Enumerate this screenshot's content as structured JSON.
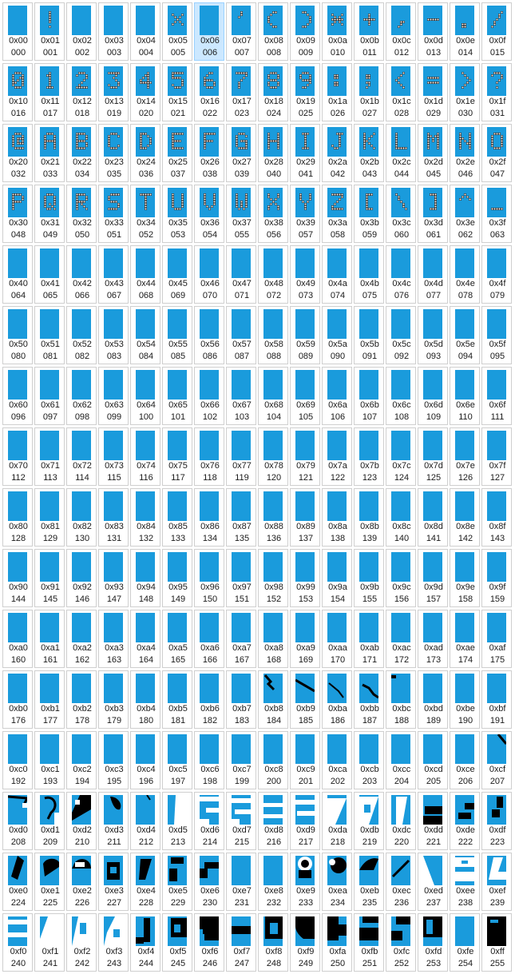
{
  "title": "",
  "selected_index": 6,
  "colors": {
    "glyph_bg": "#1a9bdc",
    "glyph_fg_light": "#ffffff",
    "glyph_fg_dark": "#000000",
    "selection": "#cce8ff"
  },
  "glyph_icons": {
    "1": "!",
    "5": "%",
    "7": "'",
    "8": "(",
    "9": ")",
    "10": "*",
    "11": "+",
    "12": ",",
    "13": "-",
    "14": ".",
    "15": "/",
    "16": "0",
    "17": "1",
    "18": "2",
    "19": "3",
    "20": "4",
    "21": "5",
    "22": "6",
    "23": "7",
    "24": "8",
    "25": "9",
    "26": ":",
    "27": ";",
    "28": "<",
    "29": "=",
    "30": ">",
    "31": "?",
    "32": "@",
    "33": "A",
    "34": "B",
    "35": "C",
    "36": "D",
    "37": "E",
    "38": "F",
    "39": "G",
    "40": "H",
    "41": "I",
    "42": "J",
    "43": "K",
    "44": "L",
    "45": "M",
    "46": "N",
    "47": "O",
    "48": "P",
    "49": "Q",
    "50": "R",
    "51": "S",
    "52": "T",
    "53": "U",
    "54": "V",
    "55": "W",
    "56": "X",
    "57": "Y",
    "58": "Z",
    "59": "[",
    "60": "\\",
    "61": "]",
    "62": "^",
    "63": "_"
  },
  "cells": [
    {
      "hex": "0x00",
      "dec": "000"
    },
    {
      "hex": "0x01",
      "dec": "001"
    },
    {
      "hex": "0x02",
      "dec": "002"
    },
    {
      "hex": "0x03",
      "dec": "003"
    },
    {
      "hex": "0x04",
      "dec": "004"
    },
    {
      "hex": "0x05",
      "dec": "005"
    },
    {
      "hex": "0x06",
      "dec": "006"
    },
    {
      "hex": "0x07",
      "dec": "007"
    },
    {
      "hex": "0x08",
      "dec": "008"
    },
    {
      "hex": "0x09",
      "dec": "009"
    },
    {
      "hex": "0x0a",
      "dec": "010"
    },
    {
      "hex": "0x0b",
      "dec": "011"
    },
    {
      "hex": "0x0c",
      "dec": "012"
    },
    {
      "hex": "0x0d",
      "dec": "013"
    },
    {
      "hex": "0x0e",
      "dec": "014"
    },
    {
      "hex": "0x0f",
      "dec": "015"
    },
    {
      "hex": "0x10",
      "dec": "016"
    },
    {
      "hex": "0x11",
      "dec": "017"
    },
    {
      "hex": "0x12",
      "dec": "018"
    },
    {
      "hex": "0x13",
      "dec": "019"
    },
    {
      "hex": "0x14",
      "dec": "020"
    },
    {
      "hex": "0x15",
      "dec": "021"
    },
    {
      "hex": "0x16",
      "dec": "022"
    },
    {
      "hex": "0x17",
      "dec": "023"
    },
    {
      "hex": "0x18",
      "dec": "024"
    },
    {
      "hex": "0x19",
      "dec": "025"
    },
    {
      "hex": "0x1a",
      "dec": "026"
    },
    {
      "hex": "0x1b",
      "dec": "027"
    },
    {
      "hex": "0x1c",
      "dec": "028"
    },
    {
      "hex": "0x1d",
      "dec": "029"
    },
    {
      "hex": "0x1e",
      "dec": "030"
    },
    {
      "hex": "0x1f",
      "dec": "031"
    },
    {
      "hex": "0x20",
      "dec": "032"
    },
    {
      "hex": "0x21",
      "dec": "033"
    },
    {
      "hex": "0x22",
      "dec": "034"
    },
    {
      "hex": "0x23",
      "dec": "035"
    },
    {
      "hex": "0x24",
      "dec": "036"
    },
    {
      "hex": "0x25",
      "dec": "037"
    },
    {
      "hex": "0x26",
      "dec": "038"
    },
    {
      "hex": "0x27",
      "dec": "039"
    },
    {
      "hex": "0x28",
      "dec": "040"
    },
    {
      "hex": "0x29",
      "dec": "041"
    },
    {
      "hex": "0x2a",
      "dec": "042"
    },
    {
      "hex": "0x2b",
      "dec": "043"
    },
    {
      "hex": "0x2c",
      "dec": "044"
    },
    {
      "hex": "0x2d",
      "dec": "045"
    },
    {
      "hex": "0x2e",
      "dec": "046"
    },
    {
      "hex": "0x2f",
      "dec": "047"
    },
    {
      "hex": "0x30",
      "dec": "048"
    },
    {
      "hex": "0x31",
      "dec": "049"
    },
    {
      "hex": "0x32",
      "dec": "050"
    },
    {
      "hex": "0x33",
      "dec": "051"
    },
    {
      "hex": "0x34",
      "dec": "052"
    },
    {
      "hex": "0x35",
      "dec": "053"
    },
    {
      "hex": "0x36",
      "dec": "054"
    },
    {
      "hex": "0x37",
      "dec": "055"
    },
    {
      "hex": "0x38",
      "dec": "056"
    },
    {
      "hex": "0x39",
      "dec": "057"
    },
    {
      "hex": "0x3a",
      "dec": "058"
    },
    {
      "hex": "0x3b",
      "dec": "059"
    },
    {
      "hex": "0x3c",
      "dec": "060"
    },
    {
      "hex": "0x3d",
      "dec": "061"
    },
    {
      "hex": "0x3e",
      "dec": "062"
    },
    {
      "hex": "0x3f",
      "dec": "063"
    },
    {
      "hex": "0x40",
      "dec": "064"
    },
    {
      "hex": "0x41",
      "dec": "065"
    },
    {
      "hex": "0x42",
      "dec": "066"
    },
    {
      "hex": "0x43",
      "dec": "067"
    },
    {
      "hex": "0x44",
      "dec": "068"
    },
    {
      "hex": "0x45",
      "dec": "069"
    },
    {
      "hex": "0x46",
      "dec": "070"
    },
    {
      "hex": "0x47",
      "dec": "071"
    },
    {
      "hex": "0x48",
      "dec": "072"
    },
    {
      "hex": "0x49",
      "dec": "073"
    },
    {
      "hex": "0x4a",
      "dec": "074"
    },
    {
      "hex": "0x4b",
      "dec": "075"
    },
    {
      "hex": "0x4c",
      "dec": "076"
    },
    {
      "hex": "0x4d",
      "dec": "077"
    },
    {
      "hex": "0x4e",
      "dec": "078"
    },
    {
      "hex": "0x4f",
      "dec": "079"
    },
    {
      "hex": "0x50",
      "dec": "080"
    },
    {
      "hex": "0x51",
      "dec": "081"
    },
    {
      "hex": "0x52",
      "dec": "082"
    },
    {
      "hex": "0x53",
      "dec": "083"
    },
    {
      "hex": "0x54",
      "dec": "084"
    },
    {
      "hex": "0x55",
      "dec": "085"
    },
    {
      "hex": "0x56",
      "dec": "086"
    },
    {
      "hex": "0x57",
      "dec": "087"
    },
    {
      "hex": "0x58",
      "dec": "088"
    },
    {
      "hex": "0x59",
      "dec": "089"
    },
    {
      "hex": "0x5a",
      "dec": "090"
    },
    {
      "hex": "0x5b",
      "dec": "091"
    },
    {
      "hex": "0x5c",
      "dec": "092"
    },
    {
      "hex": "0x5d",
      "dec": "093"
    },
    {
      "hex": "0x5e",
      "dec": "094"
    },
    {
      "hex": "0x5f",
      "dec": "095"
    },
    {
      "hex": "0x60",
      "dec": "096"
    },
    {
      "hex": "0x61",
      "dec": "097"
    },
    {
      "hex": "0x62",
      "dec": "098"
    },
    {
      "hex": "0x63",
      "dec": "099"
    },
    {
      "hex": "0x64",
      "dec": "100"
    },
    {
      "hex": "0x65",
      "dec": "101"
    },
    {
      "hex": "0x66",
      "dec": "102"
    },
    {
      "hex": "0x67",
      "dec": "103"
    },
    {
      "hex": "0x68",
      "dec": "104"
    },
    {
      "hex": "0x69",
      "dec": "105"
    },
    {
      "hex": "0x6a",
      "dec": "106"
    },
    {
      "hex": "0x6b",
      "dec": "107"
    },
    {
      "hex": "0x6c",
      "dec": "108"
    },
    {
      "hex": "0x6d",
      "dec": "109"
    },
    {
      "hex": "0x6e",
      "dec": "110"
    },
    {
      "hex": "0x6f",
      "dec": "111"
    },
    {
      "hex": "0x70",
      "dec": "112"
    },
    {
      "hex": "0x71",
      "dec": "113"
    },
    {
      "hex": "0x72",
      "dec": "114"
    },
    {
      "hex": "0x73",
      "dec": "115"
    },
    {
      "hex": "0x74",
      "dec": "116"
    },
    {
      "hex": "0x75",
      "dec": "117"
    },
    {
      "hex": "0x76",
      "dec": "118"
    },
    {
      "hex": "0x77",
      "dec": "119"
    },
    {
      "hex": "0x78",
      "dec": "120"
    },
    {
      "hex": "0x79",
      "dec": "121"
    },
    {
      "hex": "0x7a",
      "dec": "122"
    },
    {
      "hex": "0x7b",
      "dec": "123"
    },
    {
      "hex": "0x7c",
      "dec": "124"
    },
    {
      "hex": "0x7d",
      "dec": "125"
    },
    {
      "hex": "0x7e",
      "dec": "126"
    },
    {
      "hex": "0x7f",
      "dec": "127"
    },
    {
      "hex": "0x80",
      "dec": "128"
    },
    {
      "hex": "0x81",
      "dec": "129"
    },
    {
      "hex": "0x82",
      "dec": "130"
    },
    {
      "hex": "0x83",
      "dec": "131"
    },
    {
      "hex": "0x84",
      "dec": "132"
    },
    {
      "hex": "0x85",
      "dec": "133"
    },
    {
      "hex": "0x86",
      "dec": "134"
    },
    {
      "hex": "0x87",
      "dec": "135"
    },
    {
      "hex": "0x88",
      "dec": "136"
    },
    {
      "hex": "0x89",
      "dec": "137"
    },
    {
      "hex": "0x8a",
      "dec": "138"
    },
    {
      "hex": "0x8b",
      "dec": "139"
    },
    {
      "hex": "0x8c",
      "dec": "140"
    },
    {
      "hex": "0x8d",
      "dec": "141"
    },
    {
      "hex": "0x8e",
      "dec": "142"
    },
    {
      "hex": "0x8f",
      "dec": "143"
    },
    {
      "hex": "0x90",
      "dec": "144"
    },
    {
      "hex": "0x91",
      "dec": "145"
    },
    {
      "hex": "0x92",
      "dec": "146"
    },
    {
      "hex": "0x93",
      "dec": "147"
    },
    {
      "hex": "0x94",
      "dec": "148"
    },
    {
      "hex": "0x95",
      "dec": "149"
    },
    {
      "hex": "0x96",
      "dec": "150"
    },
    {
      "hex": "0x97",
      "dec": "151"
    },
    {
      "hex": "0x98",
      "dec": "152"
    },
    {
      "hex": "0x99",
      "dec": "153"
    },
    {
      "hex": "0x9a",
      "dec": "154"
    },
    {
      "hex": "0x9b",
      "dec": "155"
    },
    {
      "hex": "0x9c",
      "dec": "156"
    },
    {
      "hex": "0x9d",
      "dec": "157"
    },
    {
      "hex": "0x9e",
      "dec": "158"
    },
    {
      "hex": "0x9f",
      "dec": "159"
    },
    {
      "hex": "0xa0",
      "dec": "160"
    },
    {
      "hex": "0xa1",
      "dec": "161"
    },
    {
      "hex": "0xa2",
      "dec": "162"
    },
    {
      "hex": "0xa3",
      "dec": "163"
    },
    {
      "hex": "0xa4",
      "dec": "164"
    },
    {
      "hex": "0xa5",
      "dec": "165"
    },
    {
      "hex": "0xa6",
      "dec": "166"
    },
    {
      "hex": "0xa7",
      "dec": "167"
    },
    {
      "hex": "0xa8",
      "dec": "168"
    },
    {
      "hex": "0xa9",
      "dec": "169"
    },
    {
      "hex": "0xaa",
      "dec": "170"
    },
    {
      "hex": "0xab",
      "dec": "171"
    },
    {
      "hex": "0xac",
      "dec": "172"
    },
    {
      "hex": "0xad",
      "dec": "173"
    },
    {
      "hex": "0xae",
      "dec": "174"
    },
    {
      "hex": "0xaf",
      "dec": "175"
    },
    {
      "hex": "0xb0",
      "dec": "176"
    },
    {
      "hex": "0xb1",
      "dec": "177"
    },
    {
      "hex": "0xb2",
      "dec": "178"
    },
    {
      "hex": "0xb3",
      "dec": "179"
    },
    {
      "hex": "0xb4",
      "dec": "180"
    },
    {
      "hex": "0xb5",
      "dec": "181"
    },
    {
      "hex": "0xb6",
      "dec": "182"
    },
    {
      "hex": "0xb7",
      "dec": "183"
    },
    {
      "hex": "0xb8",
      "dec": "184"
    },
    {
      "hex": "0xb9",
      "dec": "185"
    },
    {
      "hex": "0xba",
      "dec": "186"
    },
    {
      "hex": "0xbb",
      "dec": "187"
    },
    {
      "hex": "0xbc",
      "dec": "188"
    },
    {
      "hex": "0xbd",
      "dec": "189"
    },
    {
      "hex": "0xbe",
      "dec": "190"
    },
    {
      "hex": "0xbf",
      "dec": "191"
    },
    {
      "hex": "0xc0",
      "dec": "192"
    },
    {
      "hex": "0xc1",
      "dec": "193"
    },
    {
      "hex": "0xc2",
      "dec": "194"
    },
    {
      "hex": "0xc3",
      "dec": "195"
    },
    {
      "hex": "0xc4",
      "dec": "196"
    },
    {
      "hex": "0xc5",
      "dec": "197"
    },
    {
      "hex": "0xc6",
      "dec": "198"
    },
    {
      "hex": "0xc7",
      "dec": "199"
    },
    {
      "hex": "0xc8",
      "dec": "200"
    },
    {
      "hex": "0xc9",
      "dec": "201"
    },
    {
      "hex": "0xca",
      "dec": "202"
    },
    {
      "hex": "0xcb",
      "dec": "203"
    },
    {
      "hex": "0xcc",
      "dec": "204"
    },
    {
      "hex": "0xcd",
      "dec": "205"
    },
    {
      "hex": "0xce",
      "dec": "206"
    },
    {
      "hex": "0xcf",
      "dec": "207"
    },
    {
      "hex": "0xd0",
      "dec": "208"
    },
    {
      "hex": "0xd1",
      "dec": "209"
    },
    {
      "hex": "0xd2",
      "dec": "210"
    },
    {
      "hex": "0xd3",
      "dec": "211"
    },
    {
      "hex": "0xd4",
      "dec": "212"
    },
    {
      "hex": "0xd5",
      "dec": "213"
    },
    {
      "hex": "0xd6",
      "dec": "214"
    },
    {
      "hex": "0xd7",
      "dec": "215"
    },
    {
      "hex": "0xd8",
      "dec": "216"
    },
    {
      "hex": "0xd9",
      "dec": "217"
    },
    {
      "hex": "0xda",
      "dec": "218"
    },
    {
      "hex": "0xdb",
      "dec": "219"
    },
    {
      "hex": "0xdc",
      "dec": "220"
    },
    {
      "hex": "0xdd",
      "dec": "221"
    },
    {
      "hex": "0xde",
      "dec": "222"
    },
    {
      "hex": "0xdf",
      "dec": "223"
    },
    {
      "hex": "0xe0",
      "dec": "224"
    },
    {
      "hex": "0xe1",
      "dec": "225"
    },
    {
      "hex": "0xe2",
      "dec": "226"
    },
    {
      "hex": "0xe3",
      "dec": "227"
    },
    {
      "hex": "0xe4",
      "dec": "228"
    },
    {
      "hex": "0xe5",
      "dec": "229"
    },
    {
      "hex": "0xe6",
      "dec": "230"
    },
    {
      "hex": "0xe7",
      "dec": "231"
    },
    {
      "hex": "0xe8",
      "dec": "232"
    },
    {
      "hex": "0xe9",
      "dec": "233"
    },
    {
      "hex": "0xea",
      "dec": "234"
    },
    {
      "hex": "0xeb",
      "dec": "235"
    },
    {
      "hex": "0xec",
      "dec": "236"
    },
    {
      "hex": "0xed",
      "dec": "237"
    },
    {
      "hex": "0xee",
      "dec": "238"
    },
    {
      "hex": "0xef",
      "dec": "239"
    },
    {
      "hex": "0xf0",
      "dec": "240"
    },
    {
      "hex": "0xf1",
      "dec": "241"
    },
    {
      "hex": "0xf2",
      "dec": "242"
    },
    {
      "hex": "0xf3",
      "dec": "243"
    },
    {
      "hex": "0xf4",
      "dec": "244"
    },
    {
      "hex": "0xf5",
      "dec": "245"
    },
    {
      "hex": "0xf6",
      "dec": "246"
    },
    {
      "hex": "0xf7",
      "dec": "247"
    },
    {
      "hex": "0xf8",
      "dec": "248"
    },
    {
      "hex": "0xf9",
      "dec": "249"
    },
    {
      "hex": "0xfa",
      "dec": "250"
    },
    {
      "hex": "0xfb",
      "dec": "251"
    },
    {
      "hex": "0xfc",
      "dec": "252"
    },
    {
      "hex": "0xfd",
      "dec": "253"
    },
    {
      "hex": "0xfe",
      "dec": "254"
    },
    {
      "hex": "0xff",
      "dec": "255"
    }
  ]
}
